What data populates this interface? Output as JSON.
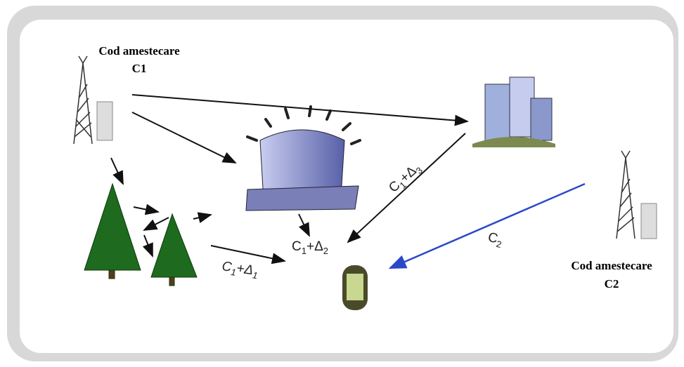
{
  "nodes": [
    {
      "label": "Cod amestecare",
      "code": "C1"
    },
    {
      "label": "Cod amestecare",
      "code": "C2"
    }
  ],
  "edges": [
    {
      "parts": [
        "C",
        "1",
        "+Δ",
        "1"
      ]
    },
    {
      "parts": [
        "C",
        "1",
        "+Δ",
        "2"
      ]
    },
    {
      "parts": [
        "C",
        "1",
        "+Δ",
        "3"
      ]
    },
    {
      "parts": [
        "C",
        "2"
      ]
    }
  ]
}
